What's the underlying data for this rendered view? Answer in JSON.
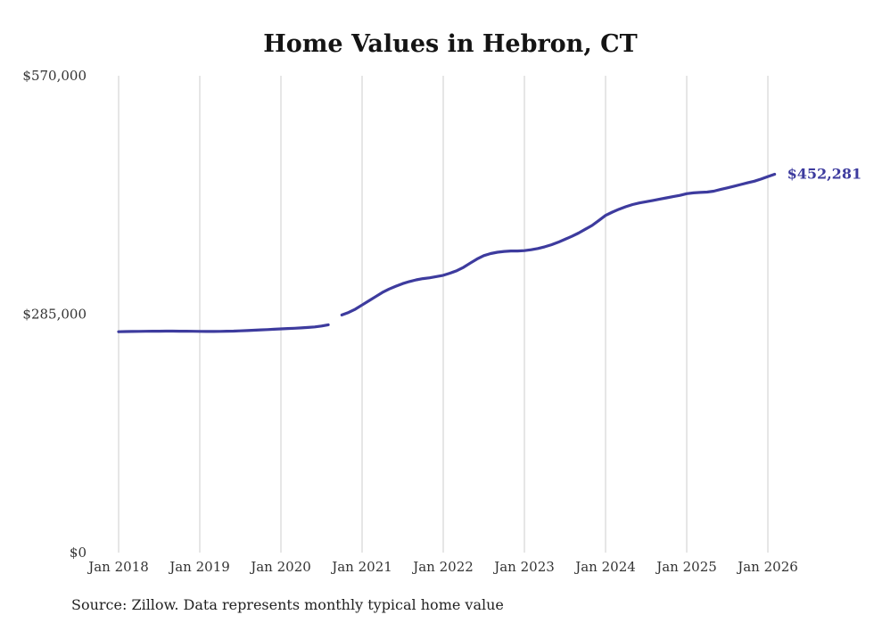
{
  "chart": {
    "title": "Home Values in Hebron, CT",
    "end_label": "$452,281",
    "source": "Source: Zillow. Data represents monthly typical home value",
    "line_color": "#3d3b9e",
    "grid_color": "#cccccc",
    "text_color": "#333333"
  },
  "chart_data": {
    "type": "line",
    "title": "Home Values in Hebron, CT",
    "xlabel": "",
    "ylabel": "",
    "ylim": [
      0,
      570000
    ],
    "grid": "vertical-only",
    "legend": "none",
    "y_ticks": [
      {
        "value": 0,
        "label": "$0"
      },
      {
        "value": 285000,
        "label": "$285,000"
      },
      {
        "value": 570000,
        "label": "$570,000"
      }
    ],
    "x_ticks": [
      "Jan 2018",
      "Jan 2019",
      "Jan 2020",
      "Jan 2021",
      "Jan 2022",
      "Jan 2023",
      "Jan 2024",
      "Jan 2025",
      "Jan 2026"
    ],
    "x_start_month": "2018-01",
    "x_interval": "monthly",
    "annotation": {
      "text": "$452,281",
      "at": "last-point"
    },
    "note": "null value represents the visible gap in the line around Sep 2020",
    "series": [
      {
        "name": "Typical home value",
        "values": [
          264000,
          264200,
          264300,
          264400,
          264500,
          264600,
          264700,
          264800,
          264800,
          264700,
          264600,
          264500,
          264400,
          264300,
          264300,
          264400,
          264600,
          264800,
          265100,
          265400,
          265800,
          266200,
          266600,
          267000,
          267400,
          267800,
          268200,
          268600,
          269100,
          269800,
          270800,
          272300,
          null,
          284000,
          287000,
          291000,
          296000,
          301000,
          306000,
          311000,
          315000,
          318500,
          321500,
          324000,
          326000,
          327500,
          328500,
          330000,
          331500,
          334000,
          337000,
          341000,
          346000,
          351000,
          355000,
          357500,
          359000,
          360000,
          360500,
          360500,
          361000,
          362000,
          363500,
          365500,
          368000,
          371000,
          374500,
          378000,
          382000,
          386500,
          391000,
          397000,
          403000,
          407000,
          410500,
          413500,
          416000,
          418000,
          419500,
          421000,
          422500,
          424000,
          425500,
          427000,
          429000,
          430000,
          430500,
          431000,
          432000,
          434000,
          436000,
          438000,
          440000,
          442000,
          444000,
          446500,
          449500,
          452281
        ]
      }
    ]
  }
}
